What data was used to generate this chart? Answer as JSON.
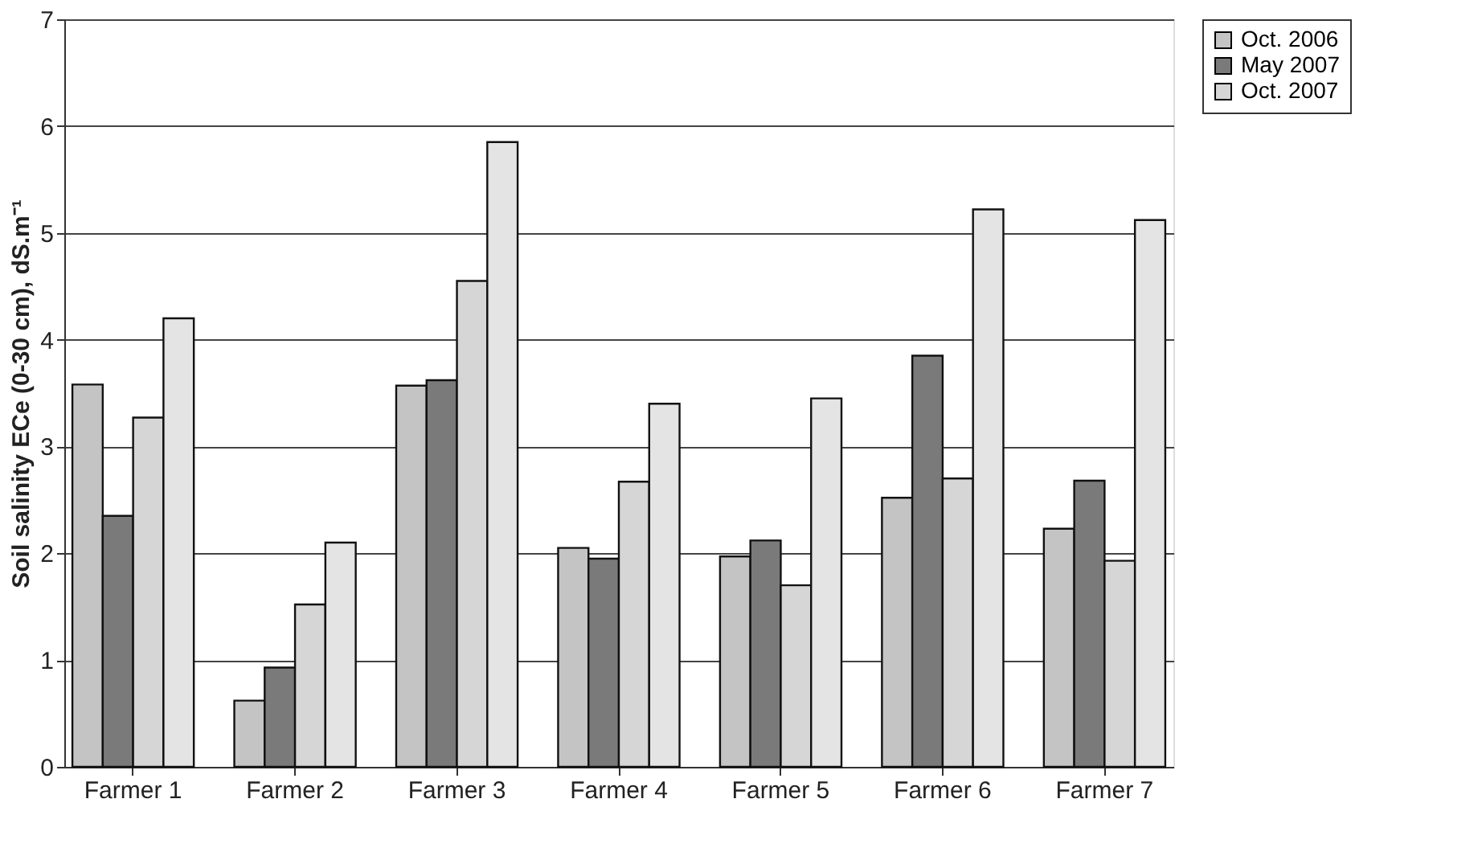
{
  "chart_data": {
    "type": "bar",
    "ylabel": "Soil salinity ECe  (0-30 cm), dS.m⁻¹",
    "categories": [
      "Farmer 1",
      "Farmer 2",
      "Farmer 3",
      "Farmer 4",
      "Farmer 5",
      "Farmer 6",
      "Farmer 7"
    ],
    "series": [
      {
        "name": "Oct. 2006",
        "color": "#c4c4c4",
        "values": [
          3.58,
          0.62,
          3.57,
          2.05,
          1.97,
          2.52,
          2.23
        ]
      },
      {
        "name": "May 2007",
        "color": "#7a7a7a",
        "values": [
          2.35,
          0.93,
          3.62,
          1.95,
          2.12,
          3.85,
          2.68
        ]
      },
      {
        "name": "Oct. 2007",
        "color": "#d6d6d6",
        "values": [
          3.27,
          1.52,
          4.55,
          2.67,
          1.7,
          2.7,
          1.93
        ]
      },
      {
        "color": "#e4e4e4",
        "values": [
          4.2,
          2.1,
          5.85,
          3.4,
          3.45,
          5.22,
          5.12
        ]
      }
    ],
    "ylim": [
      0,
      7
    ],
    "yticks": [
      0,
      1,
      2,
      3,
      4,
      5,
      6,
      7
    ],
    "grid": "y",
    "legend": "top right"
  }
}
